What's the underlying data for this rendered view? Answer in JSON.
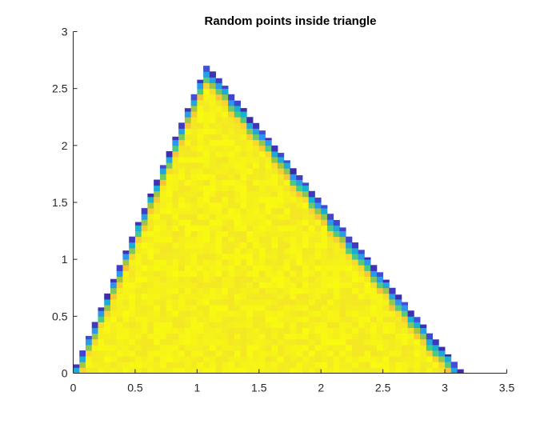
{
  "chart_data": {
    "type": "heatmap",
    "title": "Random points inside triangle",
    "xlabel": "",
    "ylabel": "",
    "xlim": [
      0,
      3.5
    ],
    "ylim": [
      0,
      3
    ],
    "xticks": [
      0,
      0.5,
      1,
      1.5,
      2,
      2.5,
      3,
      3.5
    ],
    "yticks": [
      0,
      0.5,
      1,
      1.5,
      2,
      2.5,
      3
    ],
    "xtick_labels": [
      "0",
      "0.5",
      "1",
      "1.5",
      "2",
      "2.5",
      "3",
      "3.5"
    ],
    "ytick_labels": [
      "0",
      "0.5",
      "1",
      "1.5",
      "2",
      "2.5",
      "3"
    ],
    "grid": false,
    "box": false,
    "triangle_vertices": [
      [
        0,
        0
      ],
      [
        1.08,
        2.7
      ],
      [
        3.14,
        0
      ]
    ],
    "bin_width": 0.05,
    "bin_height": 0.05,
    "interior_density": "uniform (high, yellow)",
    "edge_density": "low (blue) along the two slanted edges",
    "colormap": [
      "#3e26a8",
      "#4764f2",
      "#2e94f0",
      "#14b8c8",
      "#48cb85",
      "#b7c42f",
      "#f5b83d",
      "#f9d92e",
      "#f3ea22",
      "#f9fb0e"
    ],
    "colors": {
      "interior": "#f0e21e",
      "edge_dark": "#3e26a8",
      "axis": "#262626",
      "background": "#ffffff"
    }
  }
}
